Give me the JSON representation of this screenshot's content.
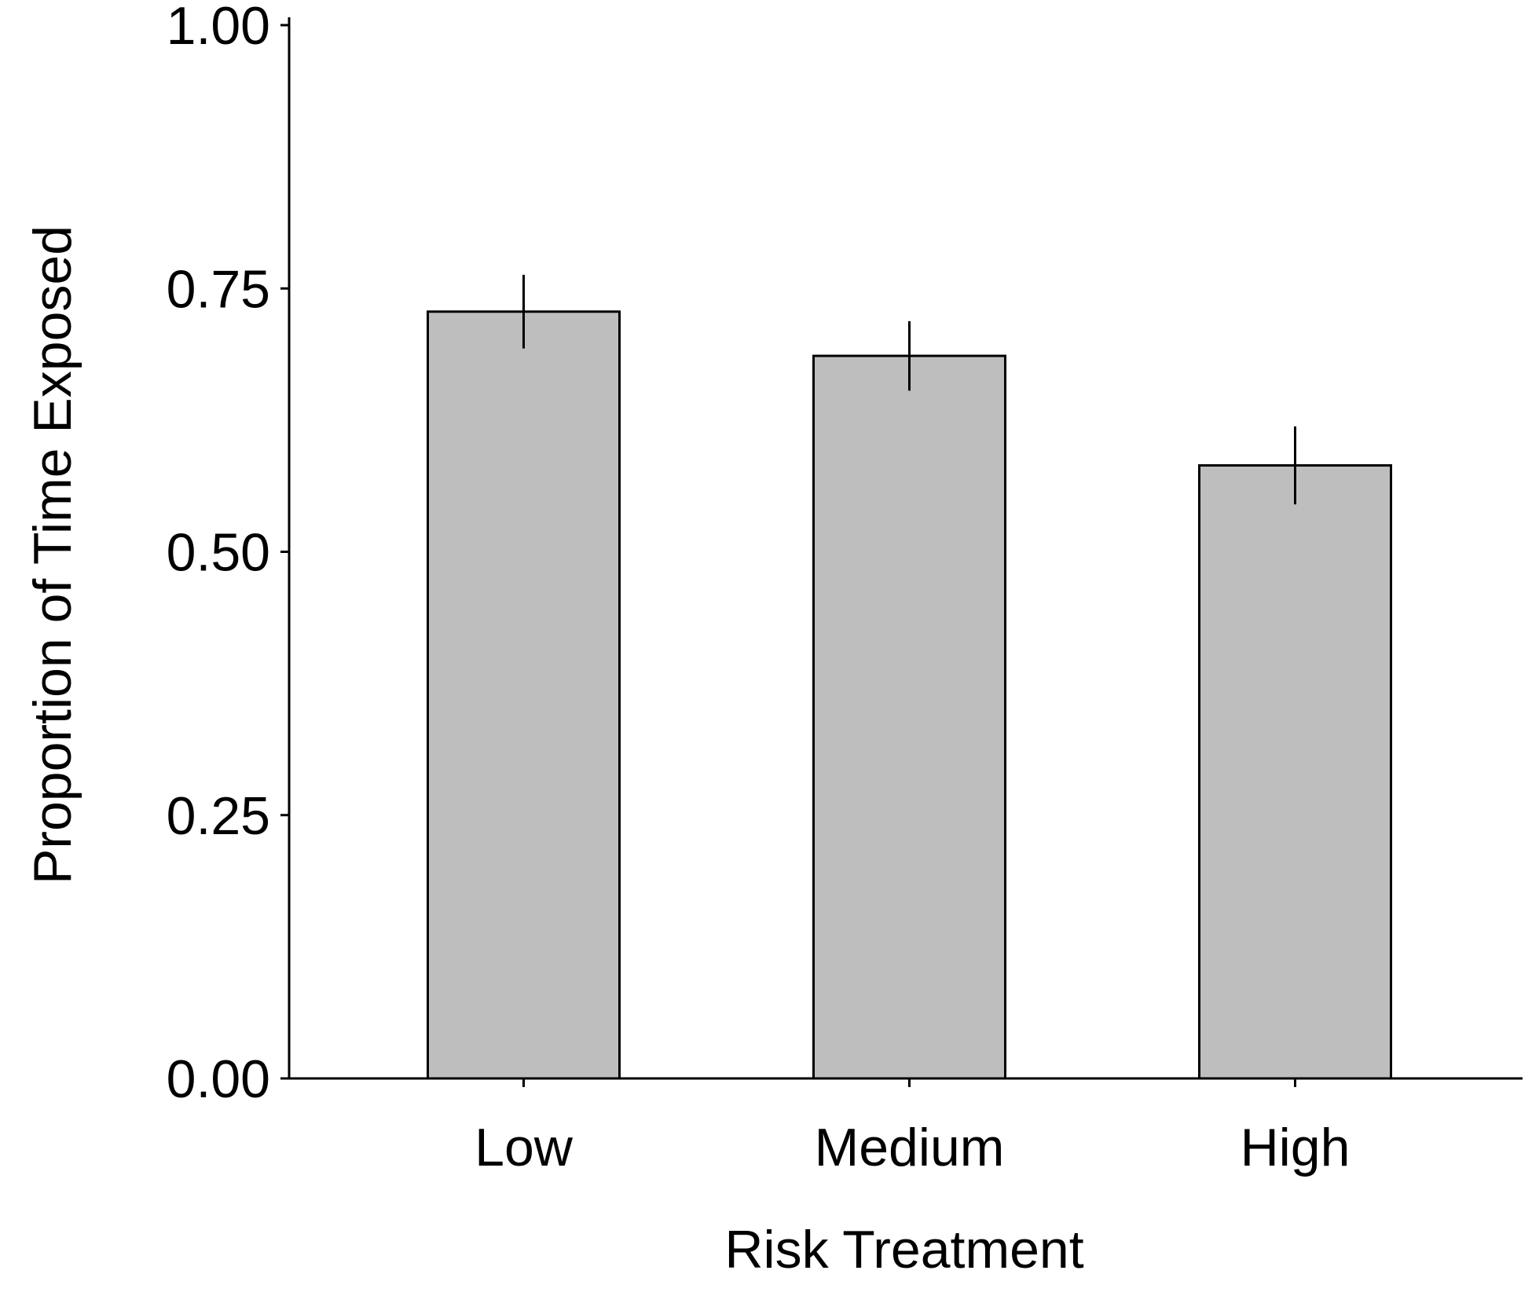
{
  "chart_data": {
    "type": "bar",
    "title": "",
    "xlabel": "Risk Treatment",
    "ylabel": "Proportion of Time Exposed",
    "categories": [
      "Low",
      "Medium",
      "High"
    ],
    "values": [
      0.728,
      0.686,
      0.582
    ],
    "error_low": [
      0.693,
      0.653,
      0.545
    ],
    "error_high": [
      0.763,
      0.719,
      0.619
    ],
    "ylim": [
      0,
      1
    ],
    "yticks": [
      0,
      0.25,
      0.5,
      0.75,
      1
    ],
    "ytick_labels": [
      "0.00",
      "0.25",
      "0.50",
      "0.75",
      "1.00"
    ],
    "grid": false,
    "legend": false,
    "colors": {
      "bar_fill": "#bebebe",
      "bar_stroke": "#000000",
      "axis": "#000000"
    }
  }
}
